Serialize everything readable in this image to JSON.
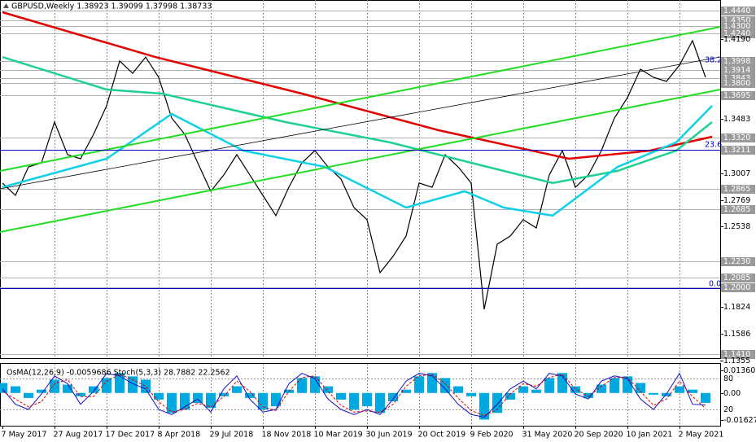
{
  "chart_data": [
    {
      "type": "line",
      "title": "GBPUSD,Weekly  1.38923 1.39099 1.37998 1.38733",
      "annotations": [
        "38.2",
        "23.6",
        "0.0"
      ],
      "xlim": [
        -0.75,
        220.5
      ],
      "xticks": [
        {
          "value": 0,
          "label": "7 May 2017"
        },
        {
          "value": 16,
          "label": "27 Aug 2017"
        },
        {
          "value": 32,
          "label": "17 Dec 2017"
        },
        {
          "value": 48,
          "label": "8 Apr 2018"
        },
        {
          "value": 64,
          "label": "29 Jul 2018"
        },
        {
          "value": 80,
          "label": "18 Nov 2018"
        },
        {
          "value": 96,
          "label": "10 Mar 2019"
        },
        {
          "value": 112,
          "label": "30 Jun 2019"
        },
        {
          "value": 128,
          "label": "20 Oct 2019"
        },
        {
          "value": 144,
          "label": "9 Feb 2020"
        },
        {
          "value": 160,
          "label": "31 May 2020"
        },
        {
          "value": 176,
          "label": "20 Sep 2020"
        },
        {
          "value": 192,
          "label": "10 Jan 2021"
        },
        {
          "value": 208,
          "label": "2 May 2021"
        }
      ],
      "ylim": [
        1.1374,
        1.4533
      ],
      "yticks": [
        {
          "value": 1.444,
          "label": "1.4440",
          "boxed": true
        },
        {
          "value": 1.435,
          "label": "1.4350",
          "boxed": true
        },
        {
          "value": 1.43,
          "label": "1.4300",
          "boxed": true
        },
        {
          "value": 1.424,
          "label": "1.4240",
          "boxed": true
        },
        {
          "value": 1.419,
          "label": "1.4190"
        },
        {
          "value": 1.3998,
          "label": "1.3998",
          "boxed": true
        },
        {
          "value": 1.3914,
          "label": "1.3914",
          "boxed": true
        },
        {
          "value": 1.3843,
          "label": "1.3843",
          "boxed": true
        },
        {
          "value": 1.38,
          "label": "1.3800",
          "boxed": true
        },
        {
          "value": 1.3695,
          "label": "1.3695",
          "boxed": true
        },
        {
          "value": 1.3483,
          "label": "1.3483"
        },
        {
          "value": 1.332,
          "label": "1.3320",
          "boxed": true
        },
        {
          "value": 1.3211,
          "label": "1.3211",
          "boxed": true
        },
        {
          "value": 1.3007,
          "label": "1.3007"
        },
        {
          "value": 1.2865,
          "label": "1.2865",
          "boxed": true
        },
        {
          "value": 1.2769,
          "label": "1.2769"
        },
        {
          "value": 1.2685,
          "label": "1.2685",
          "boxed": true
        },
        {
          "value": 1.2538,
          "label": "1.2538"
        },
        {
          "value": 1.223,
          "label": "1.2230",
          "boxed": true
        },
        {
          "value": 1.2085,
          "label": "1.2085",
          "boxed": true
        },
        {
          "value": 1.2,
          "label": "1.2000",
          "boxed": true
        },
        {
          "value": 1.1824,
          "label": "1.1824"
        },
        {
          "value": 1.1586,
          "label": "1.1586"
        },
        {
          "value": 1.141,
          "label": "1.1410",
          "boxed": true
        },
        {
          "value": 1.1355,
          "label": "1.1355"
        }
      ],
      "grid": true,
      "series": [
        {
          "color": "#000000",
          "x": [
            0,
            4,
            8,
            12,
            16,
            20,
            24,
            28,
            32,
            36,
            40,
            44,
            48,
            52,
            56,
            60,
            64,
            68,
            72,
            76,
            80,
            84,
            88,
            92,
            96,
            100,
            104,
            108,
            112,
            116,
            120,
            124,
            128,
            132,
            136,
            140,
            144,
            148,
            152,
            156,
            160,
            164,
            168,
            172,
            176,
            180,
            184,
            188,
            192,
            196,
            200,
            204,
            208,
            212,
            216
          ],
          "values": [
            1.2918,
            1.281,
            1.3061,
            1.3097,
            1.3456,
            1.3169,
            1.3133,
            1.3349,
            1.36,
            1.3995,
            1.3887,
            1.403,
            1.3851,
            1.3492,
            1.3349,
            1.3097,
            1.2846,
            1.299,
            1.3169,
            1.299,
            1.281,
            1.2631,
            1.2882,
            1.3097,
            1.3205,
            1.3061,
            1.2954,
            1.2702,
            1.2595,
            1.2128,
            1.2272,
            1.2451,
            1.2918,
            1.2882,
            1.3169,
            1.3061,
            1.2918,
            1.1805,
            1.2379,
            1.2451,
            1.2595,
            1.2523,
            1.299,
            1.3205,
            1.2882,
            1.299,
            1.3205,
            1.3492,
            1.3672,
            1.3923,
            1.3851,
            1.3815,
            1.3959,
            1.4174,
            1.3851
          ]
        },
        {
          "color": "#e00000",
          "x": [
            0,
            47,
            92,
            134,
            174,
            199,
            218
          ],
          "values": [
            1.4425,
            1.403,
            1.3707,
            1.3384,
            1.3133,
            1.3205,
            1.3327
          ]
        },
        {
          "color": "#20d090",
          "x": [
            0,
            32,
            49,
            87,
            119,
            149,
            169,
            189,
            207,
            218
          ],
          "values": [
            1.403,
            1.3743,
            1.3707,
            1.3456,
            1.3277,
            1.3061,
            1.2918,
            1.3026,
            1.3205,
            1.3456
          ]
        },
        {
          "color": "#10d0e8",
          "x": [
            0,
            32,
            52,
            74,
            99,
            124,
            142,
            154,
            169,
            189,
            207,
            218
          ],
          "values": [
            1.2882,
            1.3133,
            1.3528,
            1.3205,
            1.3061,
            1.2702,
            1.2846,
            1.2702,
            1.2631,
            1.3061,
            1.3277,
            1.36
          ]
        }
      ]
    },
    {
      "type": "bar",
      "title": "OsMA(12,26,9) -0.0059686 Stoch(5,3,3) 28.7882 22.2562",
      "xlim": [
        -0.75,
        220.5
      ],
      "ylim": [
        -0.0197,
        0.01801
      ],
      "yticks": [
        0.0136055,
        {
          "value": 0,
          "label": "0.00"
        },
        -0.0162746
      ],
      "y2lim": [
        -11.6,
        110
      ],
      "y2ticks": [
        80,
        20
      ],
      "x": [
        0,
        4,
        8,
        12,
        16,
        20,
        24,
        28,
        32,
        36,
        40,
        44,
        48,
        52,
        56,
        60,
        64,
        68,
        72,
        76,
        80,
        84,
        88,
        92,
        96,
        100,
        104,
        108,
        112,
        116,
        120,
        124,
        128,
        132,
        136,
        140,
        144,
        148,
        152,
        156,
        160,
        164,
        168,
        172,
        176,
        180,
        184,
        188,
        192,
        196,
        200,
        204,
        208,
        212,
        216
      ],
      "series": [
        {
          "color": "#00a8e0",
          "values": [
            0.006,
            0.004,
            -0.003,
            0.002,
            0.008,
            0.005,
            -0.002,
            0.004,
            0.009,
            0.012,
            0.01,
            0.008,
            -0.004,
            -0.012,
            -0.01,
            -0.006,
            -0.009,
            -0.002,
            0.004,
            -0.003,
            -0.01,
            -0.008,
            0.002,
            0.009,
            0.01,
            0.004,
            -0.004,
            -0.01,
            -0.008,
            -0.012,
            -0.005,
            0.002,
            0.01,
            0.012,
            0.009,
            0.004,
            -0.002,
            -0.016,
            -0.012,
            -0.004,
            0.004,
            0.002,
            0.009,
            0.012,
            0.004,
            -0.003,
            0.005,
            0.009,
            0.01,
            0.006,
            -0.001,
            -0.002,
            0.004,
            0.002,
            -0.0059686
          ]
        },
        {
          "color": "#1010c0",
          "axis": "y2",
          "values": [
            60,
            30,
            20,
            50,
            85,
            70,
            30,
            55,
            90,
            85,
            70,
            60,
            20,
            10,
            25,
            40,
            15,
            60,
            85,
            40,
            15,
            20,
            70,
            90,
            80,
            40,
            20,
            10,
            20,
            10,
            40,
            75,
            90,
            85,
            60,
            30,
            10,
            5,
            30,
            60,
            75,
            60,
            90,
            85,
            50,
            40,
            75,
            85,
            80,
            40,
            20,
            50,
            90,
            30,
            28.7882
          ]
        },
        {
          "color": "#e00000",
          "axis": "y2",
          "dashed": true,
          "values": [
            55,
            40,
            25,
            35,
            70,
            78,
            45,
            45,
            75,
            88,
            78,
            65,
            35,
            15,
            20,
            32,
            25,
            45,
            75,
            55,
            25,
            18,
            55,
            82,
            85,
            55,
            28,
            15,
            17,
            14,
            30,
            65,
            85,
            88,
            70,
            42,
            18,
            8,
            20,
            50,
            70,
            65,
            82,
            88,
            60,
            45,
            65,
            82,
            82,
            55,
            28,
            40,
            75,
            45,
            22.2562
          ]
        }
      ]
    }
  ]
}
